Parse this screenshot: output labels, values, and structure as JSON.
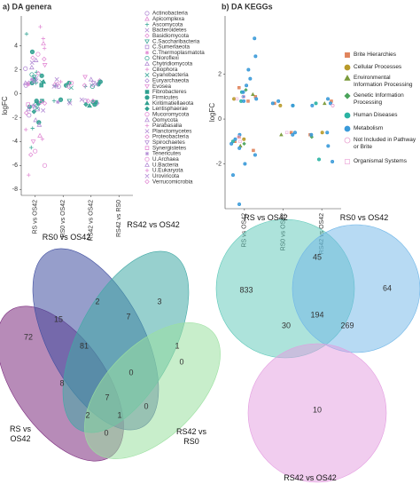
{
  "chart_data": [
    {
      "type": "strip",
      "title": "a) DA genera",
      "ylabel": "logFC",
      "categories": [
        "RS vs OS42",
        "RS0 vs OS42",
        "RS42 vs OS42",
        "RS42 vs RS0"
      ],
      "ylim": [
        -8.5,
        6.5
      ],
      "yticks": [
        4,
        2,
        0,
        -2,
        -4,
        -6,
        -8
      ],
      "series": [
        {
          "name": "Actinobacteria",
          "color": "#b58fd6",
          "marker": "circle",
          "x": [
            "RS vs OS42",
            "RS vs OS42",
            "RS vs OS42",
            "RS0 vs OS42",
            "RS42 vs OS42"
          ],
          "values": [
            2.1,
            -1.8,
            0.7,
            0.6,
            -0.6
          ]
        },
        {
          "name": "Apicomplexa",
          "color": "#e38fd6",
          "marker": "triangle",
          "x": [
            "RS vs OS42",
            "RS vs OS42",
            "RS0 vs OS42"
          ],
          "values": [
            4.2,
            -3.5,
            0.8
          ]
        },
        {
          "name": "Ascomycota",
          "color": "#3fa99a",
          "marker": "plus",
          "x": [
            "RS vs OS42",
            "RS vs OS42",
            "RS vs OS42",
            "RS vs OS42",
            "RS vs OS42",
            "RS0 vs OS42",
            "RS0 vs OS42",
            "RS42 vs OS42",
            "RS42 vs OS42"
          ],
          "values": [
            5.0,
            1.8,
            -2.9,
            -4.5,
            0.9,
            0.7,
            -0.6,
            0.9,
            0.6
          ]
        },
        {
          "name": "Bacteroidetes",
          "color": "#b58fd6",
          "marker": "cross",
          "x": [
            "RS vs OS42",
            "RS vs OS42",
            "RS vs OS42",
            "RS vs OS42",
            "RS0 vs OS42",
            "RS0 vs OS42",
            "RS42 vs OS42",
            "RS42 vs OS42"
          ],
          "values": [
            1.1,
            -1.0,
            2.6,
            -1.4,
            0.6,
            -0.7,
            -0.5,
            0.7
          ]
        },
        {
          "name": "Basidiomycota",
          "color": "#e38fd6",
          "marker": "diamond",
          "x": [
            "RS vs OS42",
            "RS vs OS42",
            "RS42 vs OS42"
          ],
          "values": [
            3.0,
            -5.1,
            1.1
          ]
        },
        {
          "name": "C.Saccharibacteria",
          "color": "#3fa99a",
          "marker": "triangle-down",
          "x": [
            "RS vs OS42",
            "RS0 vs OS42"
          ],
          "values": [
            1.4,
            -0.6
          ]
        },
        {
          "name": "C.Sumerlaeota",
          "color": "#b58fd6",
          "marker": "square",
          "x": [
            "RS vs OS42"
          ],
          "values": [
            -1.3
          ]
        },
        {
          "name": "C.Thermoplasmatota",
          "color": "#e38fd6",
          "marker": "star",
          "x": [
            "RS vs OS42"
          ],
          "values": [
            0.8
          ]
        },
        {
          "name": "Chloroflexi",
          "color": "#3fa99a",
          "marker": "circle",
          "x": [
            "RS vs OS42",
            "RS vs OS42",
            "RS42 vs OS42"
          ],
          "values": [
            1.6,
            -0.9,
            0.6
          ]
        },
        {
          "name": "Chytridiomycota",
          "color": "#b58fd6",
          "marker": "triangle",
          "x": [
            "RS vs OS42",
            "RS vs OS42"
          ],
          "values": [
            2.8,
            -2.2
          ]
        },
        {
          "name": "Ciliophora",
          "color": "#e38fd6",
          "marker": "plus",
          "x": [
            "RS vs OS42",
            "RS vs OS42",
            "RS0 vs OS42"
          ],
          "values": [
            3.8,
            -3.0,
            1.0
          ]
        },
        {
          "name": "Cyanobacteria",
          "color": "#3fa99a",
          "marker": "cross",
          "x": [
            "RS vs OS42",
            "RS vs OS42",
            "RS0 vs OS42"
          ],
          "values": [
            1.0,
            -1.2,
            0.5
          ]
        },
        {
          "name": "Euryarchaeota",
          "color": "#b58fd6",
          "marker": "diamond",
          "x": [
            "RS vs OS42",
            "RS vs OS42",
            "RS42 vs OS42"
          ],
          "values": [
            0.9,
            -0.7,
            -0.8
          ]
        },
        {
          "name": "Evosea",
          "color": "#e38fd6",
          "marker": "triangle-down",
          "x": [
            "RS vs OS42",
            "RS vs OS42",
            "RS42 vs OS42"
          ],
          "values": [
            2.4,
            -4.0,
            1.4
          ]
        },
        {
          "name": "Fibrobacteres",
          "color": "#2fa090",
          "marker": "square",
          "filled": true,
          "x": [
            "RS vs OS42",
            "RS vs OS42",
            "RS42 vs OS42"
          ],
          "values": [
            0.7,
            -0.6,
            -0.7
          ]
        },
        {
          "name": "Firmicutes",
          "color": "#2fa090",
          "marker": "circle",
          "filled": true,
          "x": [
            "RS vs OS42",
            "RS vs OS42",
            "RS vs OS42",
            "RS vs OS42",
            "RS vs OS42",
            "RS vs OS42",
            "RS vs OS42",
            "RS vs OS42",
            "RS0 vs OS42",
            "RS0 vs OS42",
            "RS0 vs OS42",
            "RS42 vs OS42",
            "RS42 vs OS42",
            "RS42 vs OS42",
            "RS42 vs OS42"
          ],
          "values": [
            1.2,
            0.9,
            -0.8,
            -1.1,
            3.5,
            -2.4,
            1.5,
            -0.6,
            0.7,
            -0.5,
            0.9,
            0.8,
            -0.7,
            1.0,
            -0.9
          ]
        },
        {
          "name": "Kiritimatiellaeota",
          "color": "#2fa090",
          "marker": "triangle",
          "filled": true,
          "x": [
            "RS vs OS42",
            "RS42 vs OS42"
          ],
          "values": [
            1.0,
            -1.0
          ]
        },
        {
          "name": "Lentisphaerae",
          "color": "#2fa090",
          "marker": "diamond",
          "filled": true,
          "x": [
            "RS vs OS42",
            "RS42 vs OS42"
          ],
          "values": [
            -1.5,
            -0.9
          ]
        },
        {
          "name": "Mucoromycota",
          "color": "#e38fd6",
          "marker": "circle",
          "x": [
            "RS vs OS42",
            "RS vs OS42",
            "RS0 vs OS42"
          ],
          "values": [
            3.3,
            -6.0,
            0.9
          ]
        },
        {
          "name": "Oomycota",
          "color": "#b58fd6",
          "marker": "triangle",
          "x": [
            "RS vs OS42",
            "RS vs OS42",
            "RS42 vs OS42"
          ],
          "values": [
            2.2,
            -2.6,
            1.2
          ]
        },
        {
          "name": "Parabasalia",
          "color": "#e38fd6",
          "marker": "plus",
          "x": [
            "RS vs OS42",
            "RS vs OS42"
          ],
          "values": [
            5.6,
            -3.8
          ]
        },
        {
          "name": "Planctomycetes",
          "color": "#b58fd6",
          "marker": "cross",
          "x": [
            "RS vs OS42",
            "RS0 vs OS42"
          ],
          "values": [
            1.3,
            -0.8
          ]
        },
        {
          "name": "Proteobacteria",
          "color": "#e38fd6",
          "marker": "diamond",
          "x": [
            "RS vs OS42",
            "RS vs OS42",
            "RS vs OS42",
            "RS vs OS42",
            "RS vs OS42",
            "RS0 vs OS42",
            "RS0 vs OS42",
            "RS42 vs OS42",
            "RS42 vs OS42"
          ],
          "values": [
            1.7,
            -1.6,
            0.8,
            -0.7,
            2.9,
            0.6,
            0.8,
            0.7,
            -0.6
          ]
        },
        {
          "name": "Spirochaetes",
          "color": "#b58fd6",
          "marker": "triangle-down",
          "x": [
            "RS vs OS42",
            "RS42 vs OS42"
          ],
          "values": [
            -1.1,
            0.9
          ]
        },
        {
          "name": "Synergistetes",
          "color": "#e38fd6",
          "marker": "square",
          "x": [
            "RS vs OS42"
          ],
          "values": [
            -0.9
          ]
        },
        {
          "name": "Tenericutes",
          "color": "#b58fd6",
          "marker": "star",
          "x": [
            "RS vs OS42",
            "RS0 vs OS42"
          ],
          "values": [
            1.2,
            -0.7
          ]
        },
        {
          "name": "U.Archaea",
          "color": "#e38fd6",
          "marker": "circle",
          "x": [
            "RS vs OS42"
          ],
          "values": [
            -4.8
          ]
        },
        {
          "name": "U.Bacteria",
          "color": "#b58fd6",
          "marker": "triangle",
          "x": [
            "RS vs OS42",
            "RS vs OS42",
            "RS0 vs OS42"
          ],
          "values": [
            0.9,
            -1.3,
            0.7
          ]
        },
        {
          "name": "U.Eukaryota",
          "color": "#e38fd6",
          "marker": "plus",
          "x": [
            "RS vs OS42",
            "RS vs OS42"
          ],
          "values": [
            -6.8,
            4.6
          ]
        },
        {
          "name": "Uroviricota",
          "color": "#b58fd6",
          "marker": "cross",
          "x": [
            "RS vs OS42",
            "RS0 vs OS42",
            "RS42 vs OS42"
          ],
          "values": [
            1.0,
            1.2,
            0.8
          ]
        },
        {
          "name": "Verrucomicrobia",
          "color": "#e38fd6",
          "marker": "diamond",
          "x": [
            "RS vs OS42",
            "RS42 vs OS42"
          ],
          "values": [
            -0.8,
            -0.6
          ]
        }
      ]
    },
    {
      "type": "strip",
      "title": "b) DA KEGGs",
      "ylabel": "logFC",
      "categories": [
        "RS vs OS42",
        "RS0 vs OS42",
        "RS42 vs OS42"
      ],
      "ylim": [
        -4,
        4.6
      ],
      "yticks": [
        2,
        0,
        -2
      ],
      "series": [
        {
          "name": "Brite Hierarchies",
          "color": "#e0845c",
          "marker": "square",
          "filled": true,
          "x": [
            "RS vs OS42",
            "RS vs OS42",
            "RS vs OS42",
            "RS vs OS42",
            "RS vs OS42",
            "RS vs OS42",
            "RS0 vs OS42",
            "RS0 vs OS42",
            "RS42 vs OS42",
            "RS42 vs OS42"
          ],
          "values": [
            1.4,
            1.0,
            0.8,
            -0.8,
            -1.0,
            -1.4,
            0.7,
            -0.6,
            0.8,
            -0.7
          ]
        },
        {
          "name": "Cellular Processes",
          "color": "#b89a2a",
          "marker": "circle",
          "filled": true,
          "x": [
            "RS vs OS42",
            "RS vs OS42",
            "RS0 vs OS42",
            "RS42 vs OS42"
          ],
          "values": [
            0.9,
            -0.9,
            0.6,
            -0.6
          ]
        },
        {
          "name": "Environmental Information Processing",
          "color": "#7a9a3a",
          "marker": "triangle",
          "filled": true,
          "x": [
            "RS vs OS42",
            "RS vs OS42",
            "RS0 vs OS42",
            "RS42 vs OS42"
          ],
          "values": [
            1.1,
            -1.2,
            -0.7,
            0.7
          ]
        },
        {
          "name": "Genetic Information Processing",
          "color": "#4aa35a",
          "marker": "diamond",
          "filled": true,
          "x": [
            "RS vs OS42",
            "RS vs OS42",
            "RS42 vs OS42"
          ],
          "values": [
            1.3,
            -1.1,
            -0.8
          ]
        },
        {
          "name": "Human Diseases",
          "color": "#2ab3a3",
          "marker": "circle",
          "filled": true,
          "x": [
            "RS vs OS42",
            "RS vs OS42",
            "RS vs OS42",
            "RS0 vs OS42",
            "RS42 vs OS42",
            "RS42 vs OS42"
          ],
          "values": [
            1.2,
            -1.0,
            0.8,
            0.6,
            0.7,
            -1.8
          ]
        },
        {
          "name": "Metabolism",
          "color": "#3a9ad9",
          "marker": "circle",
          "filled": true,
          "x": [
            "RS vs OS42",
            "RS vs OS42",
            "RS vs OS42",
            "RS vs OS42",
            "RS vs OS42",
            "RS vs OS42",
            "RS vs OS42",
            "RS vs OS42",
            "RS vs OS42",
            "RS vs OS42",
            "RS vs OS42",
            "RS vs OS42",
            "RS vs OS42",
            "RS vs OS42",
            "RS vs OS42",
            "RS vs OS42",
            "RS vs OS42",
            "RS0 vs OS42",
            "RS0 vs OS42",
            "RS0 vs OS42",
            "RS0 vs OS42",
            "RS0 vs OS42",
            "RS42 vs OS42",
            "RS42 vs OS42",
            "RS42 vs OS42",
            "RS42 vs OS42",
            "RS42 vs OS42",
            "RS42 vs OS42",
            "RS42 vs OS42"
          ],
          "values": [
            3.6,
            2.8,
            2.2,
            1.8,
            1.5,
            1.2,
            1.0,
            0.9,
            0.8,
            -0.7,
            -0.9,
            -1.1,
            -1.3,
            -1.6,
            -2.0,
            -2.5,
            -3.8,
            0.8,
            0.7,
            0.6,
            -0.6,
            -0.7,
            0.9,
            0.7,
            0.6,
            -0.6,
            -0.7,
            -1.2,
            -1.9
          ]
        },
        {
          "name": "Not Included in Pathway or Brite",
          "color": "#e8a0d0",
          "marker": "circle",
          "x": [
            "RS vs OS42",
            "RS vs OS42",
            "RS42 vs OS42"
          ],
          "values": [
            1.0,
            -0.8,
            0.6
          ]
        },
        {
          "name": "Organismal Systems",
          "color": "#f0b8e0",
          "marker": "square",
          "x": [
            "RS vs OS42",
            "RS vs OS42",
            "RS0 vs OS42"
          ],
          "values": [
            0.9,
            -1.0,
            -0.6
          ]
        }
      ]
    },
    {
      "type": "venn4",
      "sets": [
        "RS vs OS42",
        "RS0 vs OS42",
        "RS42 vs OS42",
        "RS42 vs RS0"
      ],
      "colors": [
        "#7b2b7e",
        "#3f4ea0",
        "#41a9a5",
        "#9be0a0"
      ],
      "values": [
        72,
        15,
        2,
        7,
        3,
        1,
        0,
        81,
        0,
        8,
        7,
        2,
        1,
        0,
        0
      ]
    },
    {
      "type": "venn3",
      "sets": [
        "RS vs OS42",
        "RS0 vs OS42",
        "RS42 vs OS42"
      ],
      "colors": [
        "#5cc8b8",
        "#6fb6e8",
        "#e39be0"
      ],
      "values": [
        833,
        45,
        64,
        194,
        30,
        269,
        10
      ]
    }
  ]
}
